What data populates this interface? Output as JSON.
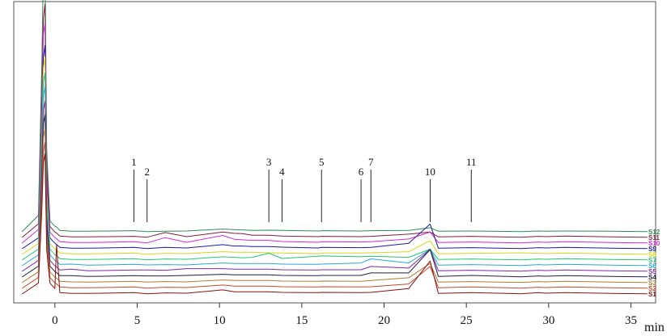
{
  "chart_data": {
    "type": "line",
    "title": "",
    "xlabel": "min",
    "ylabel": "",
    "xlim": [
      -2.5,
      36.5
    ],
    "x_ticks": [
      "0",
      "5",
      "10",
      "15",
      "20",
      "25",
      "30",
      "35"
    ],
    "x_tick_values": [
      0,
      5,
      10,
      15,
      20,
      25,
      30,
      35
    ],
    "grid": false,
    "legend_placement": "right",
    "peaks": [
      {
        "label": "1",
        "x": 4.8
      },
      {
        "label": "2",
        "x": 5.6
      },
      {
        "label": "3",
        "x": 13.0
      },
      {
        "label": "4",
        "x": 13.8
      },
      {
        "label": "5",
        "x": 16.2
      },
      {
        "label": "6",
        "x": 18.6
      },
      {
        "label": "7",
        "x": 19.2
      },
      {
        "label": "10",
        "x": 22.8
      },
      {
        "label": "11",
        "x": 25.3
      }
    ],
    "series": [
      {
        "name": "S12",
        "color": "#2e8b57"
      },
      {
        "name": "S11",
        "color": "#7a1f3d"
      },
      {
        "name": "S10",
        "color": "#d22bd2"
      },
      {
        "name": "S9",
        "color": "#1a1aa0"
      },
      {
        "name": "S8",
        "color": "#d6d61a"
      },
      {
        "name": "S7",
        "color": "#22c86e"
      },
      {
        "name": "S6",
        "color": "#2aa6d8"
      },
      {
        "name": "S5",
        "color": "#7b2aa8"
      },
      {
        "name": "S4",
        "color": "#202040"
      },
      {
        "name": "S3",
        "color": "#b07a30"
      },
      {
        "name": "S2",
        "color": "#c04830"
      },
      {
        "name": "S1",
        "color": "#8a1010"
      }
    ],
    "x_values": [
      -2.0,
      -1.0,
      -0.8,
      -0.7,
      -0.6,
      -0.5,
      -0.3,
      0.0,
      0.1,
      0.3,
      1.0,
      2.0,
      4.8,
      5.6,
      6.7,
      8.0,
      10.2,
      10.9,
      11.4,
      12.0,
      13.0,
      13.8,
      16.0,
      16.2,
      18.6,
      19.2,
      21.5,
      22.8,
      23.3,
      25.3,
      28.3,
      29.4,
      29.8,
      31.0,
      33.8,
      36.0
    ],
    "heights": [
      [
        0,
        0.6,
        6.0,
        9.5,
        9.8,
        3.0,
        0.4,
        0.2,
        0.18,
        0.05,
        0.02,
        0.02,
        0.04,
        0.01,
        0.02,
        0.03,
        0.1,
        0.08,
        0.07,
        0.05,
        0.06,
        0.05,
        0.03,
        0.04,
        0.03,
        0.04,
        0.05,
        0.15,
        0.02,
        0.03,
        0.01,
        0.03,
        0.02,
        0.03,
        0.02,
        0.01
      ],
      [
        0,
        0.5,
        5.0,
        8.0,
        8.5,
        2.6,
        0.4,
        0.2,
        0.16,
        0.05,
        0.02,
        0.02,
        0.04,
        0.01,
        0.18,
        0.03,
        0.2,
        0.15,
        0.14,
        0.08,
        0.08,
        0.05,
        0.03,
        0.04,
        0.03,
        0.04,
        0.12,
        0.2,
        0.02,
        0.04,
        0.01,
        0.04,
        0.03,
        0.05,
        0.02,
        0.01
      ],
      [
        0,
        0.5,
        4.8,
        7.6,
        8.0,
        2.5,
        0.4,
        0.2,
        0.16,
        0.05,
        0.02,
        0.02,
        0.05,
        0.01,
        0.2,
        0.03,
        0.28,
        0.14,
        0.12,
        0.1,
        0.1,
        0.06,
        0.03,
        0.05,
        0.04,
        0.05,
        0.15,
        0.4,
        0.02,
        0.04,
        0.01,
        0.04,
        0.03,
        0.05,
        0.02,
        0.01
      ],
      [
        0,
        0.4,
        4.5,
        7.0,
        7.4,
        2.4,
        0.4,
        0.2,
        0.16,
        0.05,
        0.02,
        0.02,
        0.05,
        0.01,
        0.05,
        0.03,
        0.15,
        0.1,
        0.1,
        0.08,
        0.08,
        0.06,
        0.03,
        0.05,
        0.04,
        0.05,
        0.2,
        0.9,
        0.02,
        0.04,
        0.01,
        0.04,
        0.03,
        0.05,
        0.02,
        0.01
      ],
      [
        0,
        0.4,
        4.4,
        6.8,
        7.2,
        2.3,
        0.4,
        0.2,
        0.16,
        0.05,
        0.02,
        0.02,
        0.05,
        0.01,
        0.04,
        0.03,
        0.1,
        0.08,
        0.08,
        0.08,
        0.06,
        0.05,
        0.03,
        0.05,
        0.05,
        0.06,
        0.1,
        0.5,
        0.02,
        0.04,
        0.06,
        0.04,
        0.03,
        0.05,
        0.02,
        0.01
      ],
      [
        0,
        0.4,
        4.2,
        6.5,
        6.8,
        2.2,
        0.4,
        0.2,
        0.16,
        0.05,
        0.02,
        0.02,
        0.05,
        0.01,
        0.04,
        0.03,
        0.12,
        0.1,
        0.08,
        0.1,
        0.25,
        0.06,
        0.14,
        0.15,
        0.12,
        0.14,
        0.1,
        0.4,
        0.02,
        0.04,
        0.01,
        0.04,
        0.03,
        0.05,
        0.02,
        0.01
      ],
      [
        0,
        0.4,
        4.0,
        6.2,
        6.5,
        2.1,
        0.4,
        0.2,
        0.16,
        0.05,
        0.06,
        0.02,
        0.05,
        0.03,
        0.04,
        0.03,
        0.1,
        0.08,
        0.08,
        0.08,
        0.08,
        0.06,
        0.05,
        0.06,
        0.1,
        0.25,
        0.1,
        0.6,
        0.02,
        0.04,
        0.01,
        0.04,
        0.03,
        0.05,
        0.02,
        0.01
      ],
      [
        0,
        0.4,
        3.8,
        5.9,
        6.2,
        2.0,
        0.4,
        0.2,
        0.16,
        0.05,
        0.08,
        0.02,
        0.05,
        0.05,
        0.04,
        0.1,
        0.1,
        0.08,
        0.08,
        0.08,
        0.08,
        0.06,
        0.05,
        0.06,
        0.06,
        0.18,
        0.12,
        0.8,
        0.02,
        0.04,
        0.01,
        0.04,
        0.03,
        0.05,
        0.02,
        0.01
      ],
      [
        0,
        0.4,
        3.6,
        5.6,
        5.9,
        1.9,
        0.4,
        0.2,
        0.16,
        0.05,
        0.05,
        0.02,
        0.05,
        0.04,
        0.04,
        0.06,
        0.1,
        0.08,
        0.08,
        0.08,
        0.08,
        0.06,
        0.05,
        0.06,
        0.06,
        0.15,
        0.15,
        1.0,
        0.02,
        0.06,
        0.01,
        0.04,
        0.03,
        0.05,
        0.02,
        0.01
      ],
      [
        0,
        0.4,
        3.4,
        5.3,
        5.6,
        1.8,
        0.4,
        0.2,
        0.16,
        0.05,
        0.03,
        0.02,
        0.05,
        0.02,
        0.04,
        0.03,
        0.1,
        0.08,
        0.08,
        0.08,
        0.08,
        0.06,
        0.05,
        0.06,
        0.05,
        0.08,
        0.18,
        0.7,
        0.02,
        0.04,
        0.01,
        0.04,
        0.03,
        0.05,
        0.02,
        0.01
      ],
      [
        0,
        0.4,
        3.2,
        5.0,
        5.3,
        1.7,
        0.4,
        0.2,
        0.16,
        0.05,
        0.02,
        0.02,
        0.05,
        0.01,
        0.04,
        0.03,
        0.12,
        0.08,
        0.08,
        0.08,
        0.08,
        0.06,
        0.05,
        0.06,
        0.05,
        0.06,
        0.16,
        0.8,
        0.02,
        0.05,
        0.01,
        0.04,
        0.03,
        0.05,
        0.02,
        0.01
      ],
      [
        0,
        0.4,
        3.0,
        4.8,
        5.1,
        1.6,
        0.4,
        0.2,
        1.8,
        0.05,
        0.02,
        0.02,
        0.05,
        0.01,
        0.04,
        0.03,
        0.15,
        0.08,
        0.08,
        0.08,
        0.08,
        0.06,
        0.05,
        0.06,
        0.05,
        0.06,
        0.2,
        1.2,
        0.02,
        0.05,
        0.01,
        0.05,
        0.03,
        0.05,
        0.02,
        0.01
      ]
    ]
  }
}
